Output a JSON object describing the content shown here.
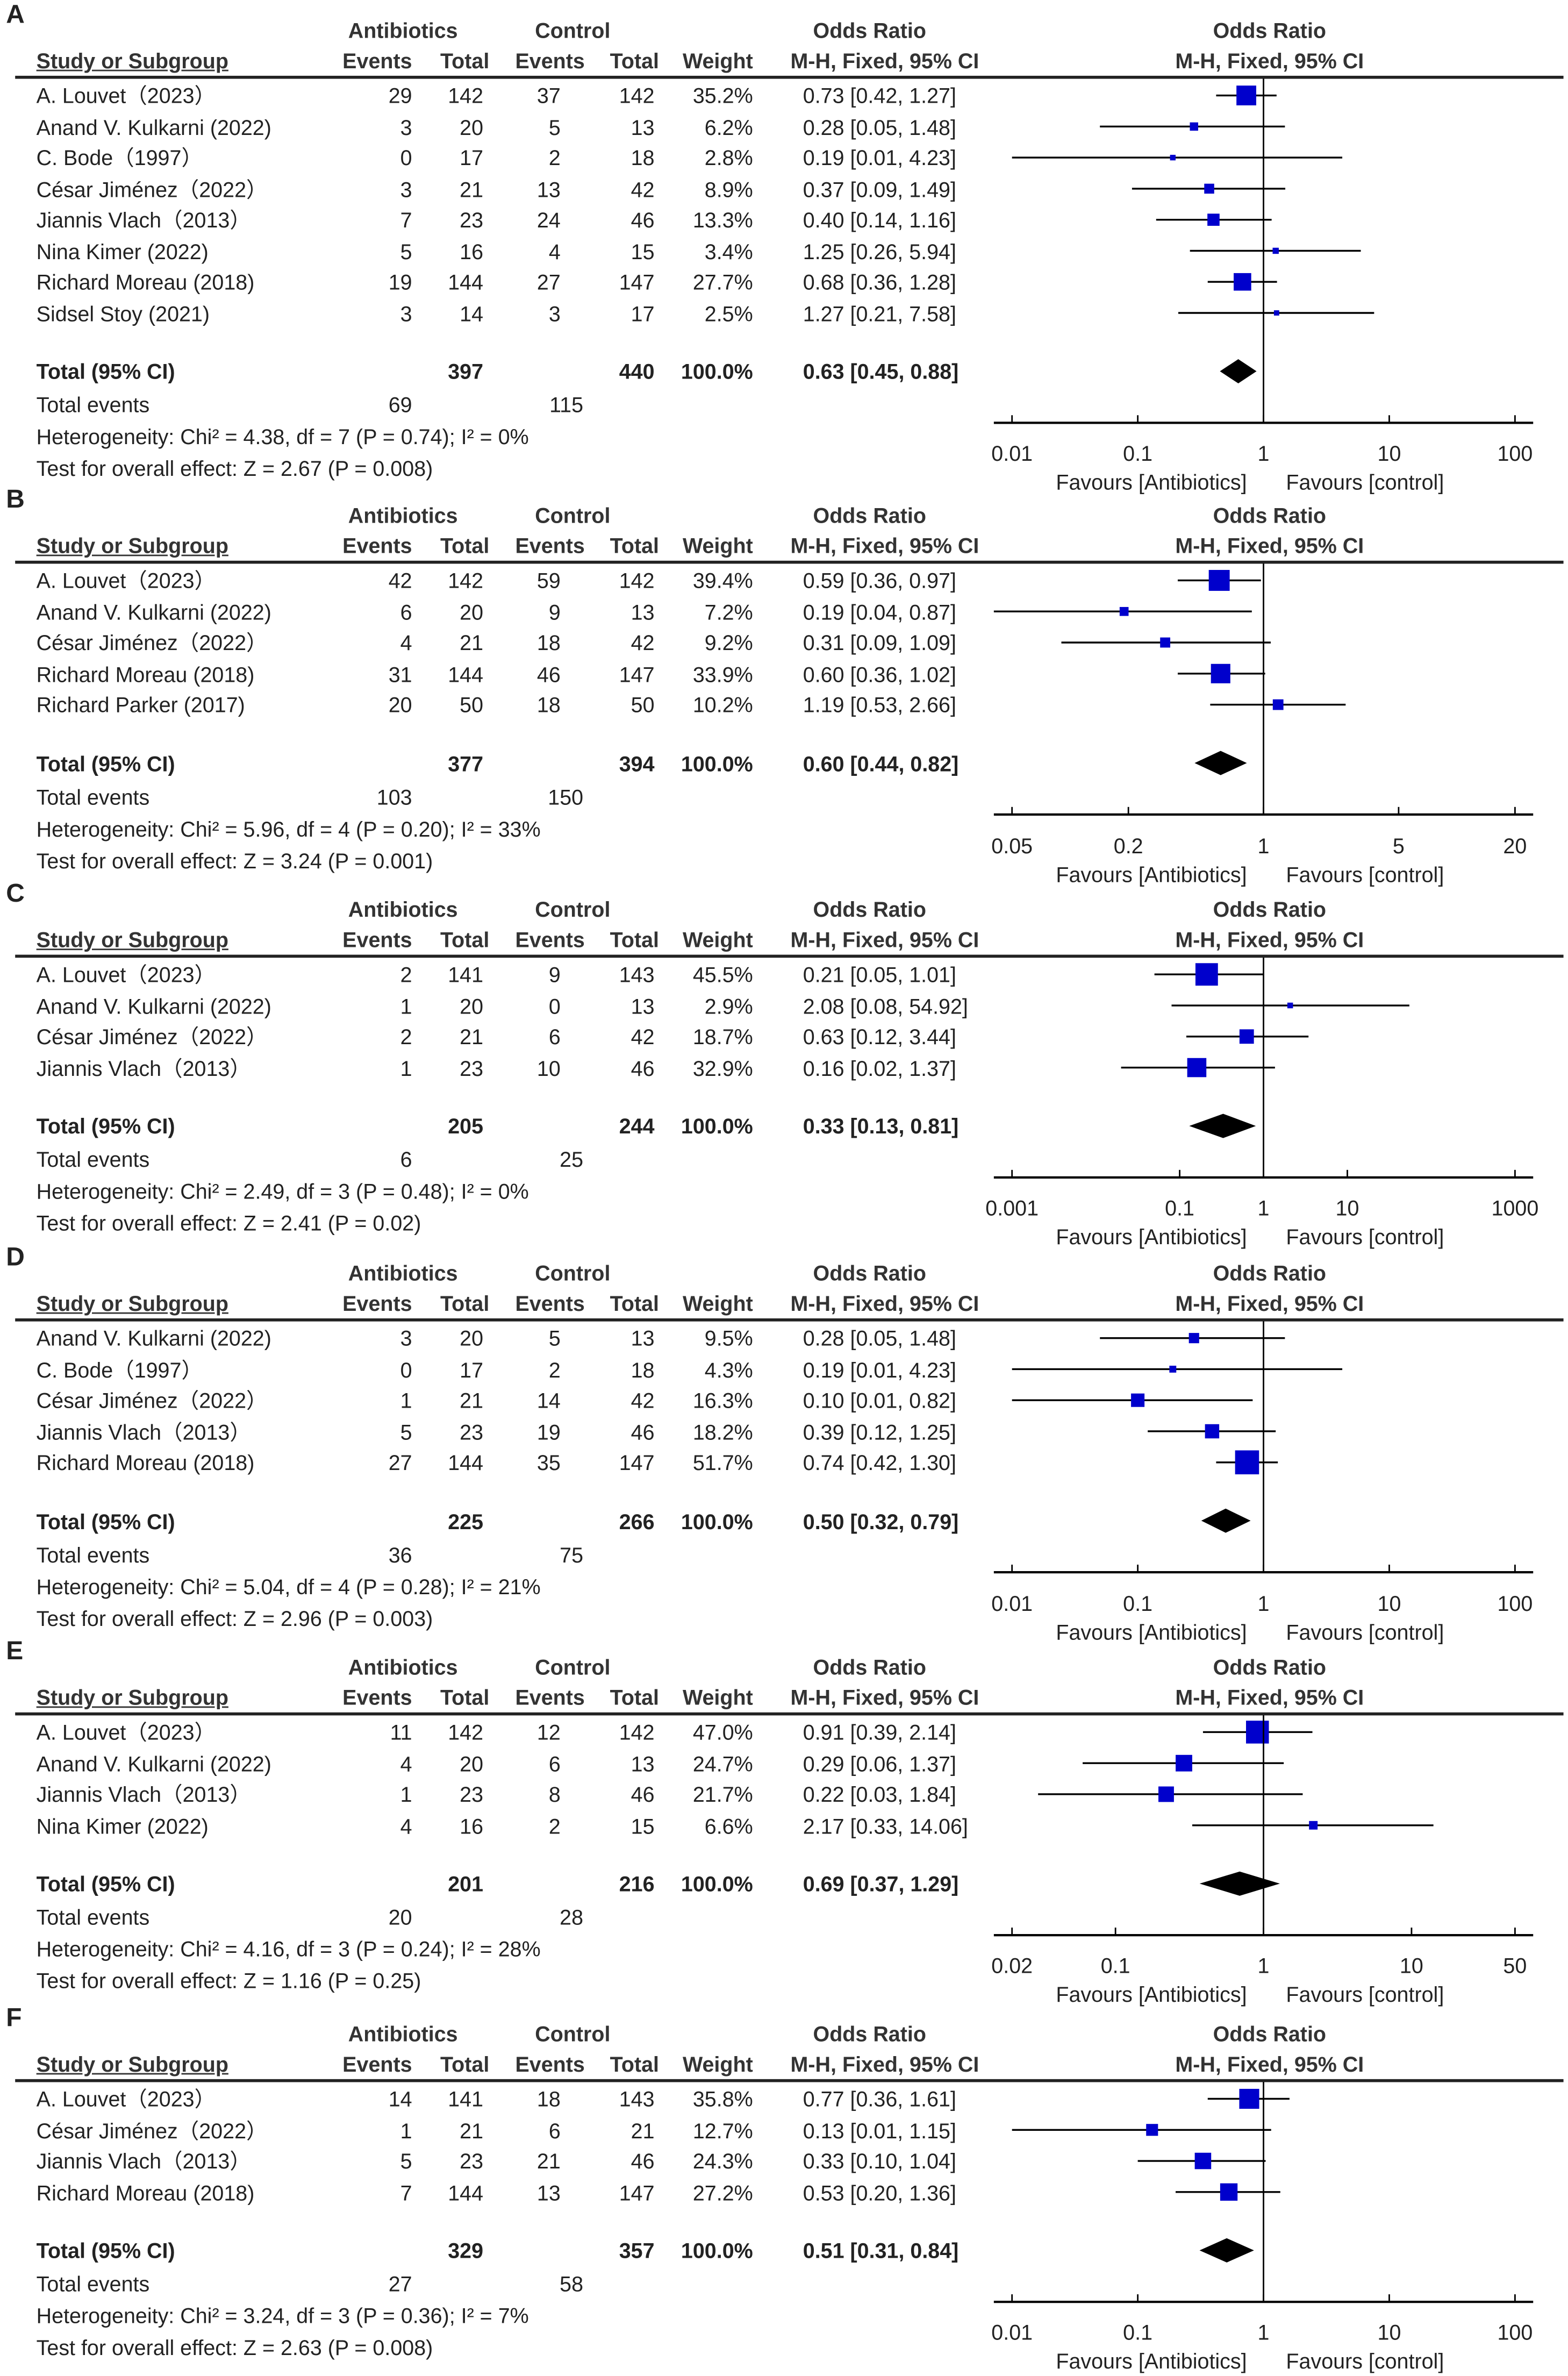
{
  "headers": {
    "group1": "Antibiotics",
    "group2": "Control",
    "or": "Odds Ratio",
    "study": "Study or Subgroup",
    "events": "Events",
    "total": "Total",
    "weight": "Weight",
    "method": "M-H, Fixed, 95% CI",
    "total_row": "Total (95% CI)",
    "total_events": "Total events",
    "favours_left": "Favours [Antibiotics]",
    "favours_right": "Favours [control]"
  },
  "colors": {
    "square": "#0000cc",
    "diamond": "#000000"
  },
  "chart_data": [
    {
      "type": "forest",
      "panel": "A",
      "studies": [
        [
          "A. Louvet（2023）",
          "29",
          "142",
          "37",
          "142",
          "35.2%",
          "0.73 [0.42, 1.27]"
        ],
        [
          "Anand V. Kulkarni (2022)",
          "3",
          "20",
          "5",
          "13",
          "6.2%",
          "0.28 [0.05, 1.48]"
        ],
        [
          "C. Bode（1997）",
          "0",
          "17",
          "2",
          "18",
          "2.8%",
          "0.19 [0.01, 4.23]"
        ],
        [
          "César Jiménez（2022）",
          "3",
          "21",
          "13",
          "42",
          "8.9%",
          "0.37 [0.09, 1.49]"
        ],
        [
          "Jiannis Vlach（2013）",
          "7",
          "23",
          "24",
          "46",
          "13.3%",
          "0.40 [0.14, 1.16]"
        ],
        [
          "Nina Kimer (2022)",
          "5",
          "16",
          "4",
          "15",
          "3.4%",
          "1.25 [0.26, 5.94]"
        ],
        [
          "Richard Moreau (2018)",
          "19",
          "144",
          "27",
          "147",
          "27.7%",
          "0.68 [0.36, 1.28]"
        ],
        [
          "Sidsel Stoy (2021)",
          "3",
          "14",
          "3",
          "17",
          "2.5%",
          "1.27 [0.21, 7.58]"
        ]
      ],
      "total": [
        "397",
        "440",
        "100.0%",
        "0.63 [0.45, 0.88]"
      ],
      "total_events": [
        "69",
        "115"
      ],
      "heterogeneity": "Heterogeneity: Chi² = 4.38, df = 7 (P = 0.74); I² = 0%",
      "overall": "Test for overall effect: Z = 2.67 (P = 0.008)",
      "ticks": [
        "0.01",
        "0.1",
        "1",
        "10",
        "100"
      ]
    },
    {
      "type": "forest",
      "panel": "B",
      "studies": [
        [
          "A. Louvet（2023）",
          "42",
          "142",
          "59",
          "142",
          "39.4%",
          "0.59 [0.36, 0.97]"
        ],
        [
          "Anand V. Kulkarni (2022)",
          "6",
          "20",
          "9",
          "13",
          "7.2%",
          "0.19 [0.04, 0.87]"
        ],
        [
          "César Jiménez（2022）",
          "4",
          "21",
          "18",
          "42",
          "9.2%",
          "0.31 [0.09, 1.09]"
        ],
        [
          "Richard Moreau (2018)",
          "31",
          "144",
          "46",
          "147",
          "33.9%",
          "0.60 [0.36, 1.02]"
        ],
        [
          "Richard Parker (2017)",
          "20",
          "50",
          "18",
          "50",
          "10.2%",
          "1.19 [0.53, 2.66]"
        ]
      ],
      "total": [
        "377",
        "394",
        "100.0%",
        "0.60 [0.44, 0.82]"
      ],
      "total_events": [
        "103",
        "150"
      ],
      "heterogeneity": "Heterogeneity: Chi² = 5.96, df = 4 (P = 0.20); I² = 33%",
      "overall": "Test for overall effect: Z = 3.24 (P = 0.001)",
      "ticks": [
        "0.05",
        "0.2",
        "1",
        "5",
        "20"
      ]
    },
    {
      "type": "forest",
      "panel": "C",
      "studies": [
        [
          "A. Louvet（2023）",
          "2",
          "141",
          "9",
          "143",
          "45.5%",
          "0.21 [0.05, 1.01]"
        ],
        [
          "Anand V. Kulkarni (2022)",
          "1",
          "20",
          "0",
          "13",
          "2.9%",
          "2.08 [0.08, 54.92]"
        ],
        [
          "César Jiménez（2022）",
          "2",
          "21",
          "6",
          "42",
          "18.7%",
          "0.63 [0.12, 3.44]"
        ],
        [
          "Jiannis Vlach（2013）",
          "1",
          "23",
          "10",
          "46",
          "32.9%",
          "0.16 [0.02, 1.37]"
        ]
      ],
      "total": [
        "205",
        "244",
        "100.0%",
        "0.33 [0.13, 0.81]"
      ],
      "total_events": [
        "6",
        "25"
      ],
      "heterogeneity": "Heterogeneity: Chi² = 2.49, df = 3 (P = 0.48); I² = 0%",
      "overall": "Test for overall effect: Z = 2.41 (P = 0.02)",
      "ticks": [
        "0.001",
        "0.1",
        "1",
        "10",
        "1000"
      ]
    },
    {
      "type": "forest",
      "panel": "D",
      "studies": [
        [
          "Anand V. Kulkarni (2022)",
          "3",
          "20",
          "5",
          "13",
          "9.5%",
          "0.28 [0.05, 1.48]"
        ],
        [
          "C. Bode（1997）",
          "0",
          "17",
          "2",
          "18",
          "4.3%",
          "0.19 [0.01, 4.23]"
        ],
        [
          "César Jiménez（2022）",
          "1",
          "21",
          "14",
          "42",
          "16.3%",
          "0.10 [0.01, 0.82]"
        ],
        [
          "Jiannis Vlach（2013）",
          "5",
          "23",
          "19",
          "46",
          "18.2%",
          "0.39 [0.12, 1.25]"
        ],
        [
          "Richard Moreau (2018)",
          "27",
          "144",
          "35",
          "147",
          "51.7%",
          "0.74 [0.42, 1.30]"
        ]
      ],
      "total": [
        "225",
        "266",
        "100.0%",
        "0.50 [0.32, 0.79]"
      ],
      "total_events": [
        "36",
        "75"
      ],
      "heterogeneity": "Heterogeneity: Chi² = 5.04, df = 4 (P = 0.28); I² = 21%",
      "overall": "Test for overall effect: Z = 2.96 (P = 0.003)",
      "ticks": [
        "0.01",
        "0.1",
        "1",
        "10",
        "100"
      ]
    },
    {
      "type": "forest",
      "panel": "E",
      "studies": [
        [
          "A. Louvet（2023）",
          "11",
          "142",
          "12",
          "142",
          "47.0%",
          "0.91 [0.39, 2.14]"
        ],
        [
          "Anand V. Kulkarni (2022)",
          "4",
          "20",
          "6",
          "13",
          "24.7%",
          "0.29 [0.06, 1.37]"
        ],
        [
          "Jiannis Vlach（2013）",
          "1",
          "23",
          "8",
          "46",
          "21.7%",
          "0.22 [0.03, 1.84]"
        ],
        [
          "Nina Kimer (2022)",
          "4",
          "16",
          "2",
          "15",
          "6.6%",
          "2.17 [0.33, 14.06]"
        ]
      ],
      "total": [
        "201",
        "216",
        "100.0%",
        "0.69 [0.37, 1.29]"
      ],
      "total_events": [
        "20",
        "28"
      ],
      "heterogeneity": "Heterogeneity: Chi² = 4.16, df = 3 (P = 0.24); I² = 28%",
      "overall": "Test for overall effect: Z = 1.16 (P = 0.25)",
      "ticks": [
        "0.02",
        "0.1",
        "1",
        "10",
        "50"
      ]
    },
    {
      "type": "forest",
      "panel": "F",
      "studies": [
        [
          "A. Louvet（2023）",
          "14",
          "141",
          "18",
          "143",
          "35.8%",
          "0.77 [0.36, 1.61]"
        ],
        [
          "César Jiménez（2022）",
          "1",
          "21",
          "6",
          "21",
          "12.7%",
          "0.13 [0.01, 1.15]"
        ],
        [
          "Jiannis Vlach（2013）",
          "5",
          "23",
          "21",
          "46",
          "24.3%",
          "0.33 [0.10, 1.04]"
        ],
        [
          "Richard Moreau (2018)",
          "7",
          "144",
          "13",
          "147",
          "27.2%",
          "0.53 [0.20, 1.36]"
        ]
      ],
      "total": [
        "329",
        "357",
        "100.0%",
        "0.51 [0.31, 0.84]"
      ],
      "total_events": [
        "27",
        "58"
      ],
      "heterogeneity": "Heterogeneity: Chi² = 3.24, df = 3 (P = 0.36); I² = 7%",
      "overall": "Test for overall effect: Z = 2.63 (P = 0.008)",
      "ticks": [
        "0.01",
        "0.1",
        "1",
        "10",
        "100"
      ]
    }
  ]
}
